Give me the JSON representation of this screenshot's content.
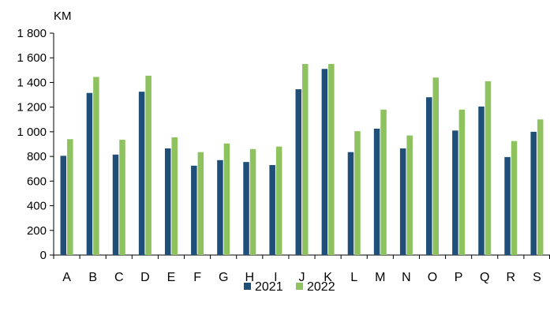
{
  "chart_data": {
    "type": "bar",
    "unit_label": "KM",
    "categories": [
      "A",
      "B",
      "C",
      "D",
      "E",
      "F",
      "G",
      "H",
      "I",
      "J",
      "K",
      "L",
      "M",
      "N",
      "O",
      "P",
      "Q",
      "R",
      "S"
    ],
    "series": [
      {
        "name": "2021",
        "color": "#1f4e79",
        "values": [
          805,
          1315,
          815,
          1325,
          865,
          725,
          770,
          755,
          730,
          1345,
          1510,
          835,
          1025,
          865,
          1280,
          1010,
          1205,
          795,
          1000
        ]
      },
      {
        "name": "2022",
        "color": "#8dc25e",
        "values": [
          940,
          1445,
          935,
          1455,
          955,
          835,
          905,
          860,
          880,
          1550,
          1550,
          1005,
          1180,
          970,
          1440,
          1180,
          1410,
          925,
          1100
        ]
      }
    ],
    "ylim": [
      0,
      1800
    ],
    "yticks": [
      0,
      200,
      400,
      600,
      800,
      1000,
      1200,
      1400,
      1600,
      1800
    ],
    "ytick_labels": [
      "0",
      "200",
      "400",
      "600",
      "800",
      "1 000",
      "1 200",
      "1 400",
      "1 600",
      "1 800"
    ],
    "grid": false,
    "legend": "bottom-center"
  }
}
